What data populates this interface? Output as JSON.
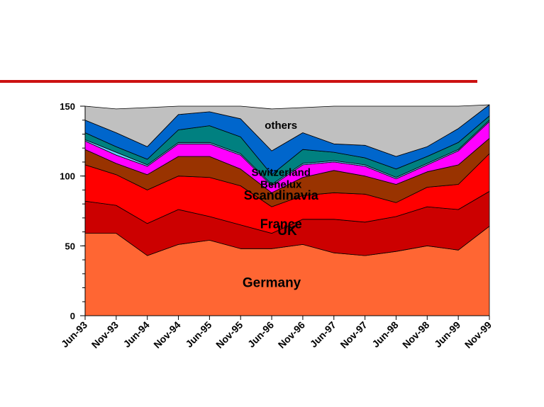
{
  "colors": {
    "rule": "#cc1111"
  },
  "chart_data": {
    "type": "area",
    "stacked": true,
    "categories": [
      "Jun-93",
      "Nov-93",
      "Jun-94",
      "Nov-94",
      "Jun-95",
      "Nov-95",
      "Jun-96",
      "Nov-96",
      "Jun-97",
      "Nov-97",
      "Jun-98",
      "Nov-98",
      "Jun-99",
      "Nov-99"
    ],
    "ylim": [
      0,
      150
    ],
    "yticks": [
      0,
      50,
      100,
      150
    ],
    "grid": false,
    "legend": "none",
    "series": [
      {
        "name": "Germany",
        "color": "#ff6633",
        "values": [
          59,
          59,
          43,
          51,
          54,
          48,
          48,
          51,
          45,
          43,
          46,
          50,
          47,
          64
        ]
      },
      {
        "name": "",
        "color": "#cc0000",
        "values": [
          23,
          20,
          23,
          25,
          17,
          17,
          11,
          18,
          24,
          24,
          25,
          28,
          29,
          25
        ]
      },
      {
        "name": "France",
        "color": "#ff0000",
        "values": [
          26,
          22,
          24,
          24,
          28,
          28,
          19,
          17,
          19,
          20,
          10,
          14,
          18,
          27
        ]
      },
      {
        "name": "Scandinavia",
        "color": "#993300",
        "values": [
          11,
          8,
          11,
          14,
          15,
          12,
          10,
          13,
          16,
          13,
          13,
          11,
          14,
          11
        ]
      },
      {
        "name": "Benelux",
        "color": "#ff00ff",
        "values": [
          6,
          6,
          6,
          9,
          9,
          10,
          5,
          9,
          6,
          7,
          4,
          5,
          10,
          12
        ]
      },
      {
        "name": "",
        "color": "#66ccff",
        "values": [
          1,
          2,
          1,
          1,
          1,
          1,
          1,
          1,
          1,
          1,
          1,
          1,
          1,
          1
        ]
      },
      {
        "name": "Switzerland",
        "color": "#008080",
        "values": [
          5,
          4,
          4,
          9,
          12,
          12,
          7,
          10,
          6,
          5,
          6,
          5,
          5,
          3
        ]
      },
      {
        "name": "",
        "color": "#0066cc",
        "values": [
          9,
          10,
          9,
          11,
          10,
          13,
          17,
          12,
          6,
          9,
          9,
          7,
          10,
          8
        ]
      },
      {
        "name": "others",
        "color": "#c0c0c0",
        "values": [
          10,
          17,
          28,
          6,
          4,
          9,
          30,
          18,
          27,
          28,
          36,
          29,
          16,
          0
        ]
      }
    ],
    "labels": [
      {
        "text": "Germany",
        "series": 0,
        "category": 6.0,
        "frac": 0.5,
        "size": 19
      },
      {
        "text": "UK",
        "series": 1,
        "category": 6.5,
        "frac": 0.8,
        "size": 19
      },
      {
        "text": "France",
        "series": 2,
        "category": 6.3,
        "frac": 0.2,
        "size": 18
      },
      {
        "text": "Scandinavia",
        "series": 3,
        "category": 6.3,
        "frac": 0.55,
        "size": 18
      },
      {
        "text": "Benelux",
        "series": 4,
        "category": 6.3,
        "frac": 0.45,
        "size": 15
      },
      {
        "text": "Switzerland",
        "series": 6,
        "category": 6.3,
        "frac": 0.55,
        "size": 15
      },
      {
        "text": "others",
        "series": 8,
        "category": 6.3,
        "frac": 0.55,
        "size": 15
      }
    ]
  }
}
